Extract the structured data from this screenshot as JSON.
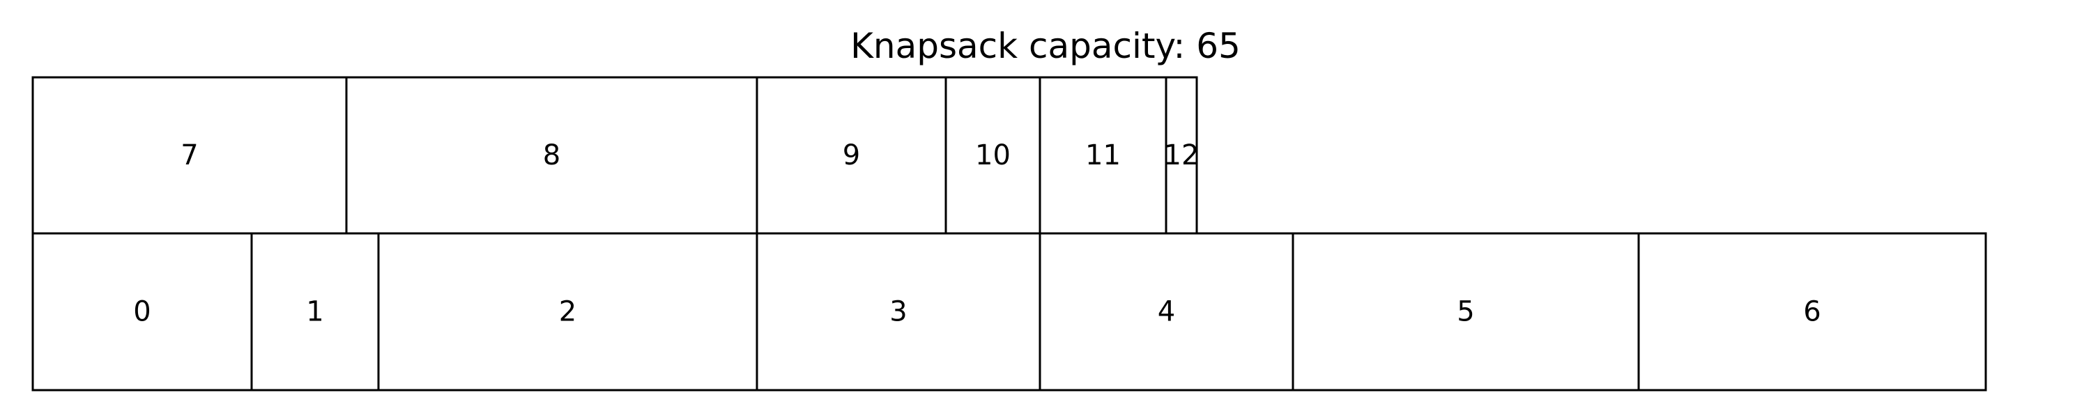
{
  "title": "Knapsack capacity: 65",
  "rows": [
    {
      "row": "bottom",
      "items": [
        {
          "label": "0"
        },
        {
          "label": "1"
        },
        {
          "label": "2"
        },
        {
          "label": "3"
        },
        {
          "label": "4"
        },
        {
          "label": "5"
        },
        {
          "label": "6"
        }
      ]
    },
    {
      "row": "top",
      "items": [
        {
          "label": "7"
        },
        {
          "label": "8"
        },
        {
          "label": "9"
        },
        {
          "label": "10"
        },
        {
          "label": "11"
        },
        {
          "label": "12"
        }
      ]
    }
  ]
}
